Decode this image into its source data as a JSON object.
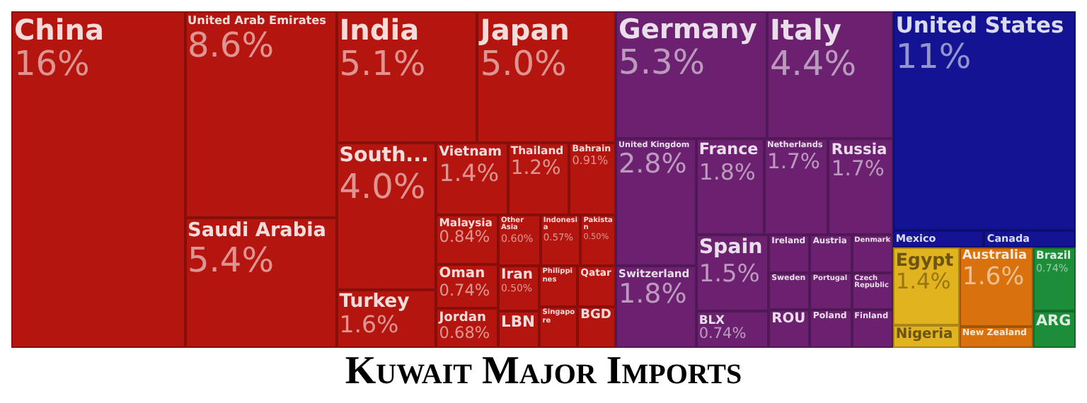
{
  "chart_data": {
    "type": "other",
    "title": "Kuwait Major Imports",
    "categories": [
      "China",
      "United Arab Emirates",
      "Saudi Arabia",
      "India",
      "Japan",
      "South...",
      "Turkey",
      "Vietnam",
      "Thailand",
      "Bahrain",
      "Malaysia",
      "Oman",
      "Jordan",
      "Other Asia",
      "Indonesia",
      "Pakistan",
      "Iran",
      "LBN",
      "Philippines",
      "Qatar",
      "Singapore",
      "BGD",
      "Germany",
      "Italy",
      "United Kingdom",
      "Switzerland",
      "France",
      "Netherlands",
      "Russia",
      "Spain",
      "BLX",
      "Ireland",
      "Sweden",
      "ROU",
      "Austria",
      "Denmark",
      "Portugal",
      "Poland",
      "Czech Republic",
      "Finland",
      "United States",
      "Mexico",
      "Canada",
      "Egypt",
      "Nigeria",
      "Australia",
      "New Zealand",
      "Brazil",
      "ARG"
    ],
    "values": [
      16,
      8.6,
      5.4,
      5.1,
      5.0,
      4.0,
      1.6,
      1.4,
      1.2,
      0.91,
      0.84,
      0.74,
      0.68,
      0.6,
      0.57,
      0.5,
      0.5,
      null,
      null,
      null,
      null,
      null,
      5.3,
      4.4,
      2.8,
      1.8,
      1.8,
      1.7,
      1.7,
      1.5,
      0.74,
      null,
      null,
      null,
      null,
      null,
      null,
      null,
      null,
      null,
      11,
      null,
      null,
      1.4,
      null,
      1.6,
      null,
      0.74,
      null
    ],
    "value_labels": [
      "16%",
      "8.6%",
      "5.4%",
      "5.1%",
      "5.0%",
      "4.0%",
      "1.6%",
      "1.4%",
      "1.2%",
      "0.91%",
      "0.84%",
      "0.74%",
      "0.68%",
      "0.60%",
      "0.57%",
      "0.50%",
      "0.50%",
      null,
      null,
      null,
      null,
      null,
      "5.3%",
      "4.4%",
      "2.8%",
      "1.8%",
      "1.8%",
      "1.7%",
      "1.7%",
      "1.5%",
      "0.74%",
      null,
      null,
      null,
      null,
      null,
      null,
      null,
      null,
      null,
      "11%",
      null,
      null,
      "1.4%",
      null,
      "1.6%",
      null,
      "0.74%",
      null
    ],
    "colors": [
      "#b5150f",
      "#b5150f",
      "#b5150f",
      "#b5150f",
      "#b5150f",
      "#b5150f",
      "#b5150f",
      "#b5150f",
      "#b5150f",
      "#b5150f",
      "#b5150f",
      "#b5150f",
      "#b5150f",
      "#b5150f",
      "#b5150f",
      "#b5150f",
      "#b5150f",
      "#b5150f",
      "#b5150f",
      "#b5150f",
      "#b5150f",
      "#b5150f",
      "#6b2170",
      "#6b2170",
      "#6b2170",
      "#6b2170",
      "#6b2170",
      "#6b2170",
      "#6b2170",
      "#6b2170",
      "#6b2170",
      "#6b2170",
      "#6b2170",
      "#6b2170",
      "#6b2170",
      "#6b2170",
      "#6b2170",
      "#6b2170",
      "#6b2170",
      "#6b2170",
      "#131394",
      "#131394",
      "#131394",
      "#e1b31f",
      "#e1b31f",
      "#d9720c",
      "#d9720c",
      "#1c8d38",
      "#1c8d38"
    ]
  }
}
